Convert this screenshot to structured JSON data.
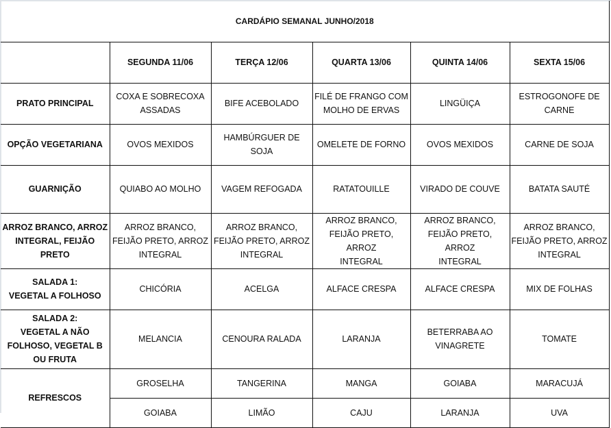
{
  "title": "CARDÁPIO SEMANAL JUNHO/2018",
  "days": [
    "SEGUNDA 11/06",
    "TERÇA 12/06",
    "QUARTA 13/06",
    "QUINTA 14/06",
    "SEXTA 15/06"
  ],
  "rows": [
    {
      "label": "PRATO PRINCIPAL",
      "cells": [
        "COXA E SOBRECOXA\nASSADAS",
        "BIFE ACEBOLADO",
        "FILÉ DE FRANGO COM\nMOLHO DE ERVAS",
        "LINGÜIÇA",
        "ESTROGONOFE DE\nCARNE"
      ]
    },
    {
      "label": "OPÇÃO VEGETARIANA",
      "cells": [
        "OVOS MEXIDOS",
        "HAMBÚRGUER DE SOJA",
        "OMELETE DE FORNO",
        "OVOS MEXIDOS",
        "CARNE DE SOJA"
      ]
    },
    {
      "label": "GUARNIÇÃO",
      "cells": [
        "QUIABO AO MOLHO",
        "VAGEM REFOGADA",
        "RATATOUILLE",
        "VIRADO DE COUVE",
        "BATATA SAUTÉ"
      ]
    },
    {
      "label": "ARROZ BRANCO, ARROZ\nINTEGRAL, FEIJÃO PRETO",
      "cells": [
        "ARROZ BRANCO,\nFEIJÃO PRETO, ARROZ\nINTEGRAL",
        "ARROZ BRANCO,\nFEIJÃO PRETO, ARROZ\nINTEGRAL",
        "ARROZ BRANCO,\nFEIJÃO PRETO, ARROZ\nINTEGRAL",
        "ARROZ BRANCO,\nFEIJÃO PRETO, ARROZ\nINTEGRAL",
        "ARROZ BRANCO,\nFEIJÃO PRETO, ARROZ\nINTEGRAL"
      ]
    },
    {
      "label": "SALADA 1:\nVEGETAL A FOLHOSO",
      "cells": [
        "CHICÓRIA",
        "ACELGA",
        "ALFACE CRESPA",
        "ALFACE CRESPA",
        "MIX DE FOLHAS"
      ]
    },
    {
      "label": "SALADA 2:\nVEGETAL A NÃO\nFOLHOSO, VEGETAL B\nOU FRUTA",
      "cells": [
        "MELANCIA",
        "CENOURA RALADA",
        "LARANJA",
        "BETERRABA AO\nVINAGRETE",
        "TOMATE"
      ]
    }
  ],
  "refrescos": {
    "label": "REFRESCOS",
    "lines": [
      [
        "GROSELHA",
        "TANGERINA",
        "MANGA",
        "GOIABA",
        "MARACUJÁ"
      ],
      [
        "GOIABA",
        "LIMÃO",
        "CAJU",
        "LARANJA",
        "UVA"
      ]
    ]
  }
}
